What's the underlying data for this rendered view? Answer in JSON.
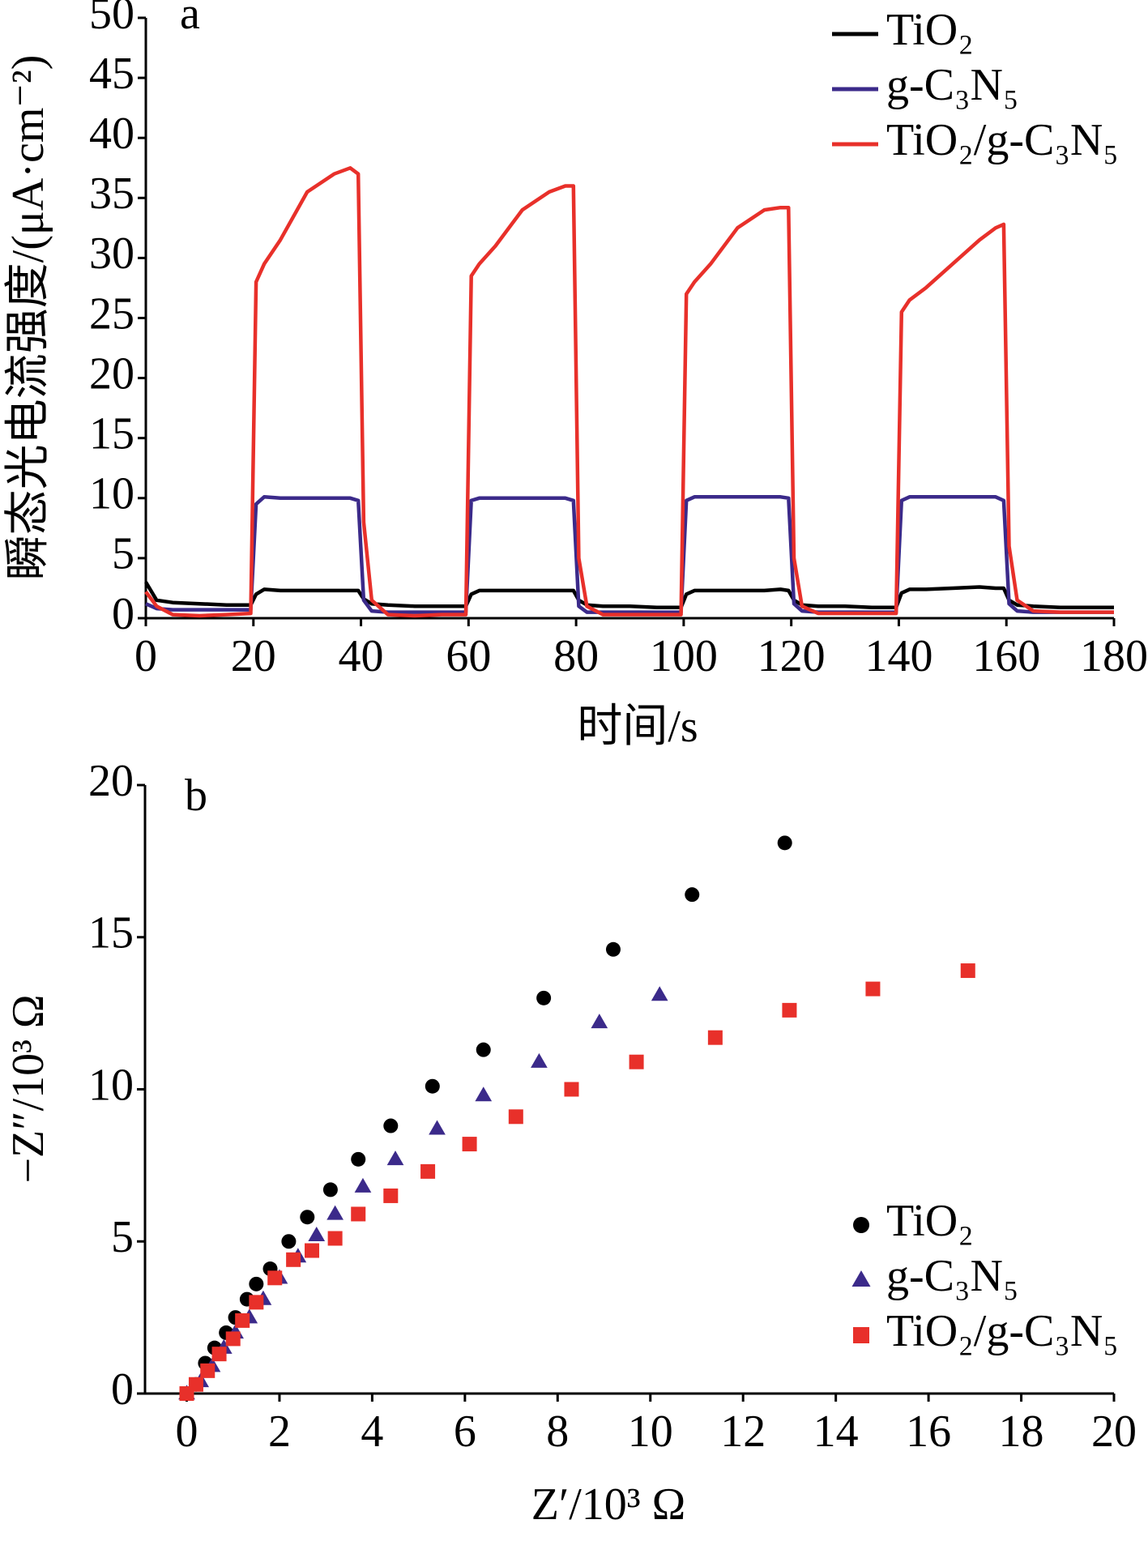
{
  "chart_data": [
    {
      "type": "line",
      "panel": "a",
      "xlabel": "时间/s",
      "ylabel": "瞬态光电流强度/(μA·cm⁻²)",
      "xlim": [
        0,
        180
      ],
      "xticks": [
        0,
        20,
        40,
        60,
        80,
        100,
        120,
        140,
        160,
        180
      ],
      "ylim": [
        0,
        50
      ],
      "yticks": [
        0,
        5,
        10,
        15,
        20,
        25,
        30,
        35,
        40,
        45,
        50
      ],
      "legend": "upper right",
      "x": [
        0,
        2,
        5,
        10,
        15,
        19.5,
        20.5,
        22,
        25,
        30,
        35,
        38,
        39.5,
        40.5,
        42,
        45,
        50,
        55,
        59.5,
        60.5,
        62,
        65,
        70,
        75,
        78,
        79.5,
        80.5,
        82,
        85,
        90,
        95,
        99.5,
        100.5,
        102,
        105,
        110,
        115,
        118,
        119.5,
        120.5,
        122,
        125,
        130,
        135,
        139.5,
        140.5,
        142,
        145,
        150,
        155,
        158,
        159.5,
        160.5,
        162,
        165,
        170,
        175,
        180
      ],
      "series": [
        {
          "name": "TiO₂",
          "color": "#000000",
          "values": [
            3,
            1.5,
            1.3,
            1.2,
            1.1,
            1.1,
            2.0,
            2.4,
            2.3,
            2.3,
            2.3,
            2.3,
            2.3,
            1.6,
            1.2,
            1.1,
            1.0,
            1.0,
            1.0,
            2.0,
            2.3,
            2.3,
            2.3,
            2.3,
            2.3,
            2.3,
            1.5,
            1.1,
            1.0,
            1.0,
            0.9,
            0.9,
            2.0,
            2.3,
            2.3,
            2.3,
            2.3,
            2.4,
            2.3,
            1.5,
            1.1,
            1.0,
            1.0,
            0.9,
            0.9,
            2.1,
            2.4,
            2.4,
            2.5,
            2.6,
            2.5,
            2.5,
            1.5,
            1.1,
            1.0,
            0.9,
            0.9,
            0.9
          ]
        },
        {
          "name": "g-C₃N₅",
          "color": "#3b2a8a",
          "values": [
            1.2,
            0.8,
            0.7,
            0.7,
            0.7,
            0.7,
            9.5,
            10.1,
            10.0,
            10.0,
            10.0,
            10.0,
            9.8,
            1.5,
            0.6,
            0.5,
            0.5,
            0.5,
            0.5,
            9.8,
            10.0,
            10.0,
            10.0,
            10.0,
            10.0,
            9.8,
            1.0,
            0.5,
            0.5,
            0.5,
            0.5,
            0.5,
            9.8,
            10.1,
            10.1,
            10.1,
            10.1,
            10.1,
            10.0,
            1.2,
            0.6,
            0.5,
            0.5,
            0.5,
            0.5,
            9.8,
            10.1,
            10.1,
            10.1,
            10.1,
            10.1,
            9.8,
            1.2,
            0.6,
            0.5,
            0.5,
            0.5,
            0.5
          ]
        },
        {
          "name": "TiO₂/g-C₃N₅",
          "color": "#e8302a",
          "values": [
            2.2,
            1.0,
            0.3,
            0.2,
            0.3,
            0.4,
            28,
            29.5,
            31.5,
            35.5,
            37,
            37.5,
            37,
            8,
            1.5,
            0.3,
            0.2,
            0.3,
            0.3,
            28.5,
            29.5,
            31,
            34,
            35.5,
            36,
            36,
            5,
            1,
            0.3,
            0.3,
            0.3,
            0.3,
            27,
            28,
            29.5,
            32.5,
            34,
            34.2,
            34.2,
            5,
            1,
            0.4,
            0.4,
            0.4,
            0.4,
            25.5,
            26.5,
            27.5,
            29.5,
            31.5,
            32.5,
            32.8,
            6,
            1.5,
            0.6,
            0.5,
            0.5,
            0.5
          ]
        }
      ]
    },
    {
      "type": "scatter",
      "panel": "b",
      "xlabel": "Z′/10³ Ω",
      "ylabel": "−Z″/10³ Ω",
      "xlim": [
        -0.9,
        20
      ],
      "xticks": [
        0,
        2,
        4,
        6,
        8,
        10,
        12,
        14,
        16,
        18,
        20
      ],
      "ylim": [
        0,
        20
      ],
      "yticks": [
        0,
        5,
        10,
        15,
        20
      ],
      "legend": "lower right",
      "series": [
        {
          "name": "TiO₂",
          "color": "#000000",
          "marker": "circle",
          "x": [
            12.9,
            10.9,
            9.2,
            7.7,
            6.4,
            5.3,
            4.4,
            3.7,
            3.1,
            2.6,
            2.2,
            1.8,
            1.5,
            1.3,
            1.05,
            0.85,
            0.6,
            0.4,
            0.2,
            0
          ],
          "values": [
            18.1,
            16.4,
            14.6,
            13.0,
            11.3,
            10.1,
            8.8,
            7.7,
            6.7,
            5.8,
            5.0,
            4.1,
            3.6,
            3.1,
            2.5,
            2.0,
            1.5,
            1.0,
            0.3,
            0
          ]
        },
        {
          "name": "g-C₃N₅",
          "color": "#3b2a8a",
          "marker": "triangle",
          "x": [
            10.2,
            8.9,
            7.6,
            6.4,
            5.4,
            4.5,
            3.8,
            3.2,
            2.8,
            2.4,
            2.0,
            1.65,
            1.35,
            1.05,
            0.8,
            0.55,
            0.3,
            0
          ],
          "values": [
            13.1,
            12.2,
            10.9,
            9.8,
            8.7,
            7.7,
            6.8,
            5.9,
            5.2,
            4.5,
            3.8,
            3.1,
            2.5,
            2.0,
            1.5,
            0.9,
            0.4,
            0
          ]
        },
        {
          "name": "TiO₂/g-C₃N₅",
          "color": "#e8302a",
          "marker": "square",
          "x": [
            16.85,
            14.8,
            13.0,
            11.4,
            9.7,
            8.3,
            7.1,
            6.1,
            5.2,
            4.4,
            3.7,
            3.2,
            2.7,
            2.3,
            1.9,
            1.5,
            1.2,
            1.0,
            0.7,
            0.45,
            0.2,
            0
          ],
          "values": [
            13.9,
            13.3,
            12.6,
            11.7,
            10.9,
            10.0,
            9.1,
            8.2,
            7.3,
            6.5,
            5.9,
            5.1,
            4.7,
            4.4,
            3.8,
            3.0,
            2.4,
            1.8,
            1.3,
            0.75,
            0.3,
            0
          ]
        }
      ]
    }
  ]
}
